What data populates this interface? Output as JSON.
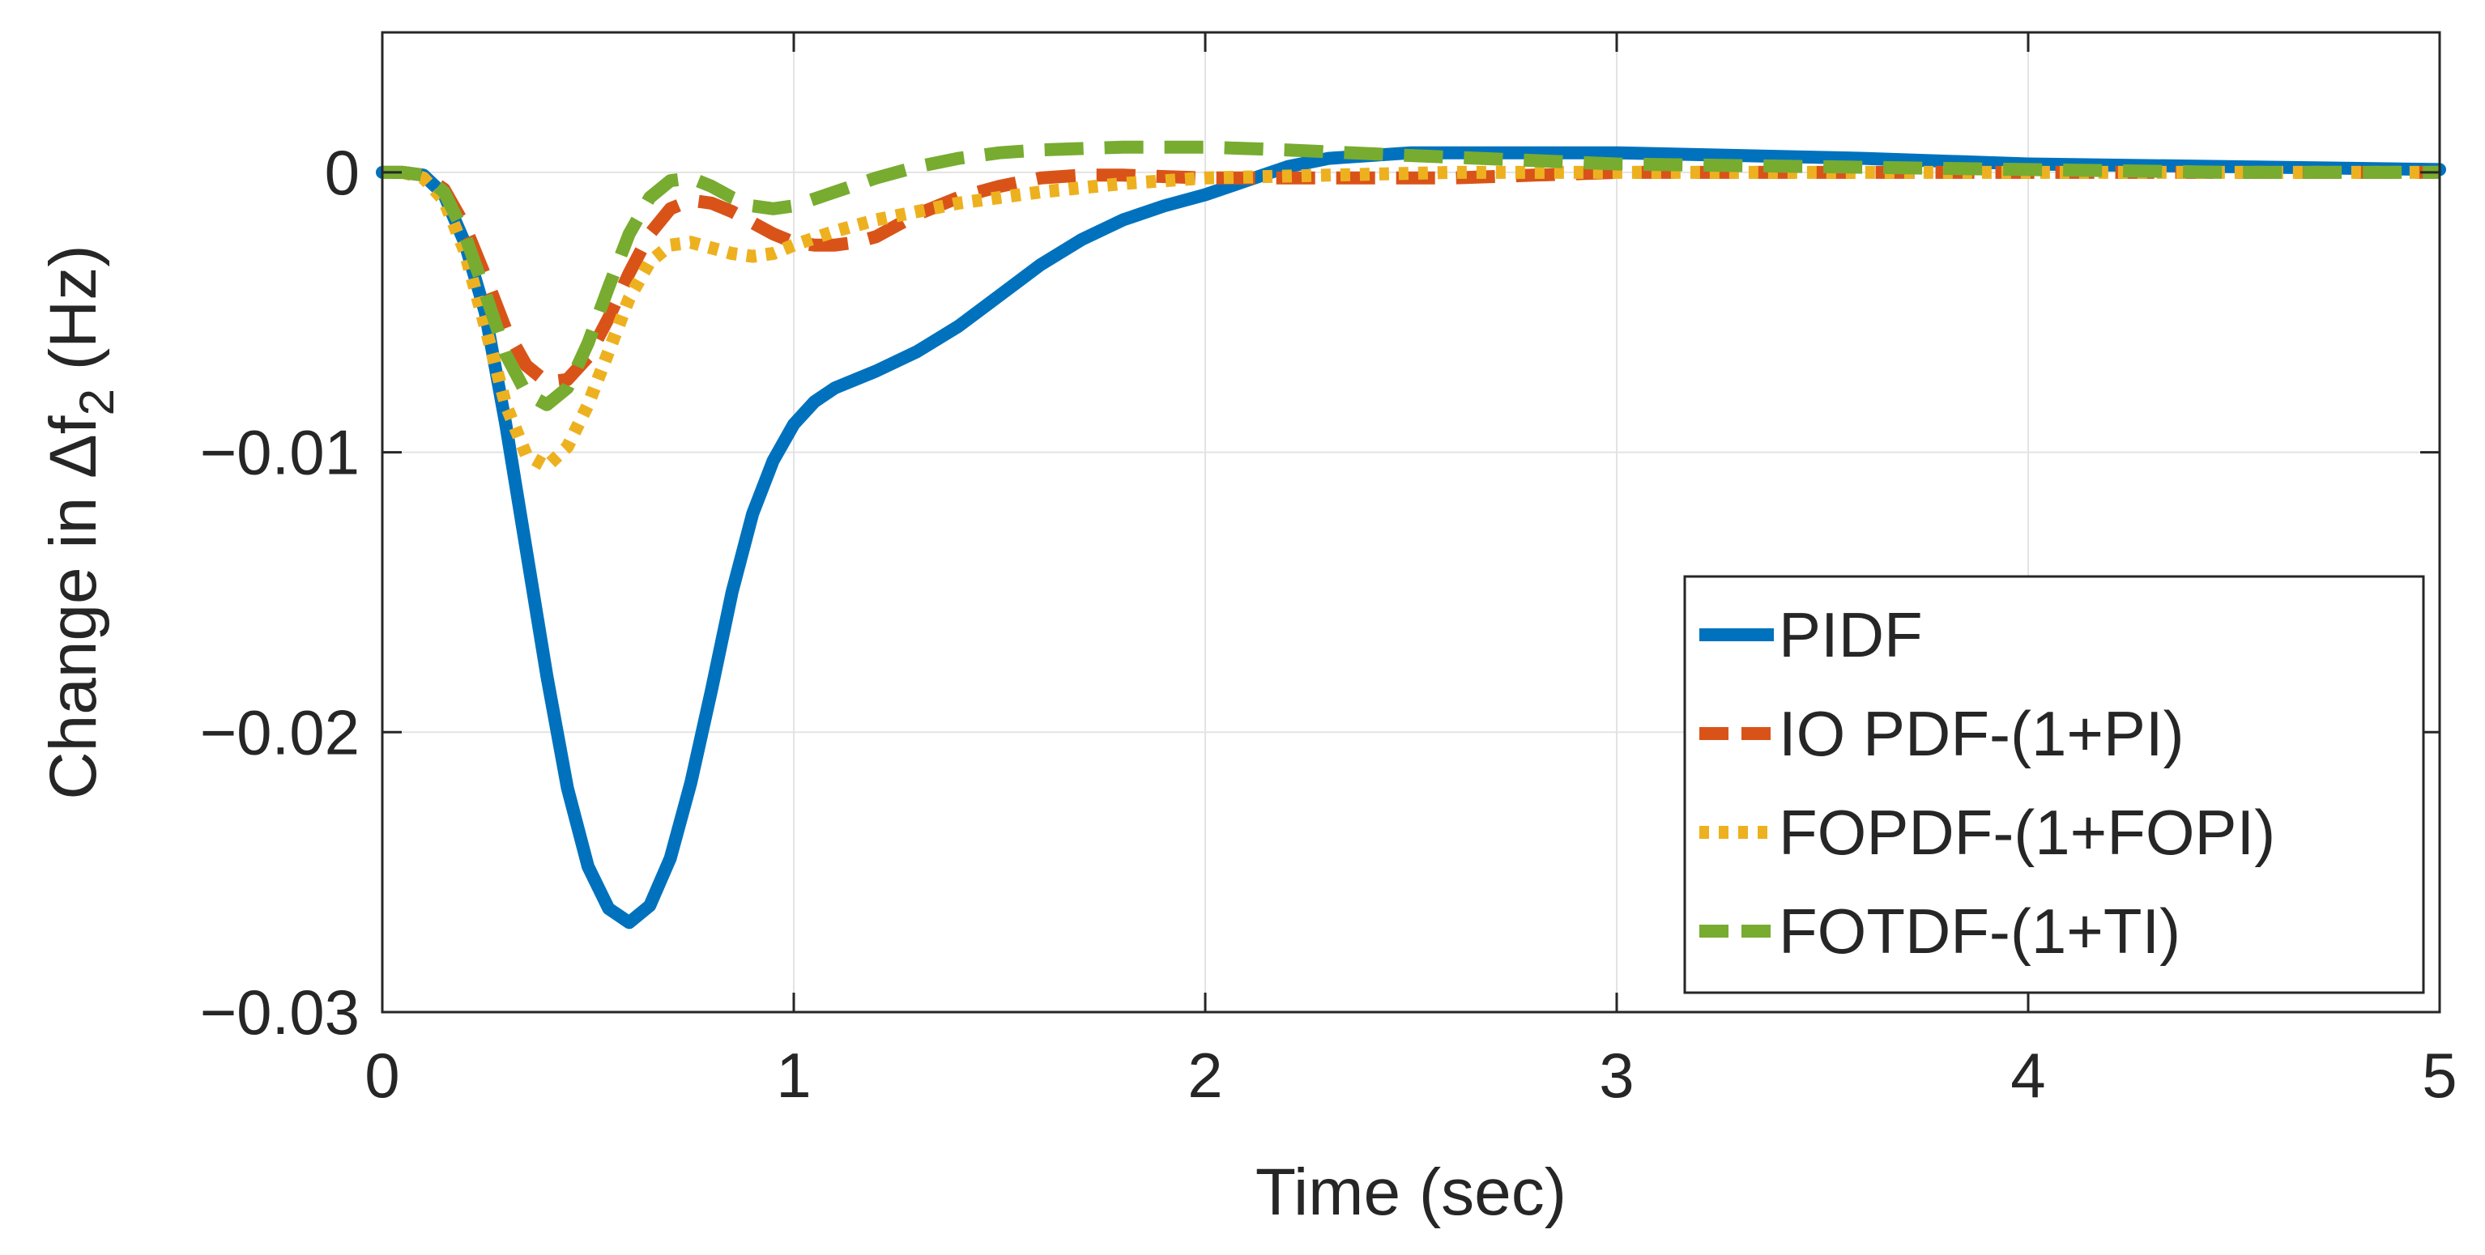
{
  "chart_data": {
    "type": "line",
    "title": "",
    "xlabel": "Time (sec)",
    "ylabel": {
      "prefix": "Change in Δf",
      "subscript": "2",
      "suffix": " (Hz)"
    },
    "xlim": [
      0,
      5
    ],
    "ylim": [
      -0.03,
      0.005
    ],
    "grid": true,
    "legend_position": "bottom-right",
    "x_ticks": [
      {
        "value": 0,
        "label": "0"
      },
      {
        "value": 1,
        "label": "1"
      },
      {
        "value": 2,
        "label": "2"
      },
      {
        "value": 3,
        "label": "3"
      },
      {
        "value": 4,
        "label": "4"
      },
      {
        "value": 5,
        "label": "5"
      }
    ],
    "y_ticks": [
      {
        "value": 0,
        "label": "0"
      },
      {
        "value": -0.01,
        "label": "−0.01"
      },
      {
        "value": -0.02,
        "label": "−0.02"
      },
      {
        "value": -0.03,
        "label": "−0.03"
      }
    ],
    "series": [
      {
        "name": "PIDF",
        "color": "#0072BD",
        "style": "solid",
        "points": [
          [
            0,
            0
          ],
          [
            0.05,
            0
          ],
          [
            0.1,
            -0.0001
          ],
          [
            0.15,
            -0.0008
          ],
          [
            0.2,
            -0.0025
          ],
          [
            0.25,
            -0.005
          ],
          [
            0.3,
            -0.009
          ],
          [
            0.35,
            -0.0135
          ],
          [
            0.4,
            -0.018
          ],
          [
            0.45,
            -0.022
          ],
          [
            0.5,
            -0.0248
          ],
          [
            0.55,
            -0.0263
          ],
          [
            0.6,
            -0.0268
          ],
          [
            0.65,
            -0.0262
          ],
          [
            0.7,
            -0.0245
          ],
          [
            0.75,
            -0.0218
          ],
          [
            0.8,
            -0.0185
          ],
          [
            0.85,
            -0.015
          ],
          [
            0.9,
            -0.0122
          ],
          [
            0.95,
            -0.0103
          ],
          [
            1.0,
            -0.009
          ],
          [
            1.05,
            -0.0082
          ],
          [
            1.1,
            -0.0077
          ],
          [
            1.2,
            -0.0071
          ],
          [
            1.3,
            -0.0064
          ],
          [
            1.4,
            -0.0055
          ],
          [
            1.5,
            -0.0044
          ],
          [
            1.6,
            -0.0033
          ],
          [
            1.7,
            -0.0024
          ],
          [
            1.8,
            -0.0017
          ],
          [
            1.9,
            -0.0012
          ],
          [
            2.0,
            -0.0008
          ],
          [
            2.1,
            -0.0003
          ],
          [
            2.2,
            0.0002
          ],
          [
            2.3,
            0.0005
          ],
          [
            2.5,
            0.0007
          ],
          [
            2.7,
            0.0007
          ],
          [
            3.0,
            0.0007
          ],
          [
            3.3,
            0.0006
          ],
          [
            3.6,
            0.0005
          ],
          [
            4.0,
            0.0003
          ],
          [
            4.5,
            0.0002
          ],
          [
            5.0,
            0.0001
          ]
        ]
      },
      {
        "name": "IO PDF-(1+PI)",
        "color": "#D95319",
        "style": "dashed",
        "points": [
          [
            0,
            0
          ],
          [
            0.05,
            0
          ],
          [
            0.1,
            -0.0001
          ],
          [
            0.15,
            -0.0006
          ],
          [
            0.2,
            -0.0019
          ],
          [
            0.25,
            -0.0037
          ],
          [
            0.3,
            -0.0056
          ],
          [
            0.35,
            -0.0069
          ],
          [
            0.4,
            -0.0075
          ],
          [
            0.45,
            -0.0074
          ],
          [
            0.5,
            -0.0066
          ],
          [
            0.55,
            -0.0052
          ],
          [
            0.6,
            -0.0036
          ],
          [
            0.65,
            -0.0022
          ],
          [
            0.7,
            -0.0013
          ],
          [
            0.75,
            -0.001
          ],
          [
            0.8,
            -0.0011
          ],
          [
            0.85,
            -0.0014
          ],
          [
            0.9,
            -0.0018
          ],
          [
            0.95,
            -0.0022
          ],
          [
            1.0,
            -0.0025
          ],
          [
            1.05,
            -0.0026
          ],
          [
            1.1,
            -0.0026
          ],
          [
            1.15,
            -0.0025
          ],
          [
            1.2,
            -0.0023
          ],
          [
            1.25,
            -0.0019
          ],
          [
            1.3,
            -0.0015
          ],
          [
            1.35,
            -0.0012
          ],
          [
            1.4,
            -0.0009
          ],
          [
            1.5,
            -0.0005
          ],
          [
            1.6,
            -0.0002
          ],
          [
            1.7,
            -0.0001
          ],
          [
            1.8,
            -0.0001
          ],
          [
            2.0,
            -0.0002
          ],
          [
            2.2,
            -0.0002
          ],
          [
            2.4,
            -0.0002
          ],
          [
            2.6,
            -0.0002
          ],
          [
            2.8,
            -0.0001
          ],
          [
            3.0,
            0
          ],
          [
            3.5,
            0
          ],
          [
            4.0,
            0
          ],
          [
            4.5,
            0
          ],
          [
            5.0,
            0
          ]
        ]
      },
      {
        "name": "FOPDF-(1+FOPI)",
        "color": "#EDB120",
        "style": "dotted",
        "points": [
          [
            0,
            0
          ],
          [
            0.05,
            0
          ],
          [
            0.1,
            -0.0002
          ],
          [
            0.15,
            -0.001
          ],
          [
            0.2,
            -0.0028
          ],
          [
            0.25,
            -0.0055
          ],
          [
            0.3,
            -0.0083
          ],
          [
            0.35,
            -0.0101
          ],
          [
            0.4,
            -0.0105
          ],
          [
            0.45,
            -0.0098
          ],
          [
            0.5,
            -0.0083
          ],
          [
            0.55,
            -0.0064
          ],
          [
            0.6,
            -0.0045
          ],
          [
            0.65,
            -0.0032
          ],
          [
            0.7,
            -0.0026
          ],
          [
            0.75,
            -0.0025
          ],
          [
            0.8,
            -0.0027
          ],
          [
            0.85,
            -0.0029
          ],
          [
            0.9,
            -0.003
          ],
          [
            0.95,
            -0.0029
          ],
          [
            1.0,
            -0.0026
          ],
          [
            1.1,
            -0.0021
          ],
          [
            1.2,
            -0.0017
          ],
          [
            1.3,
            -0.0014
          ],
          [
            1.4,
            -0.0011
          ],
          [
            1.5,
            -0.0009
          ],
          [
            1.6,
            -0.0007
          ],
          [
            1.8,
            -0.0004
          ],
          [
            2.0,
            -0.0002
          ],
          [
            2.3,
            -0.0001
          ],
          [
            2.6,
            0
          ],
          [
            3.0,
            0
          ],
          [
            4.0,
            0
          ],
          [
            5.0,
            0
          ]
        ]
      },
      {
        "name": "FOTDF-(1+TI)",
        "color": "#77AC30",
        "style": "dashed",
        "points": [
          [
            0,
            0
          ],
          [
            0.05,
            0
          ],
          [
            0.1,
            -0.0001
          ],
          [
            0.15,
            -0.0007
          ],
          [
            0.2,
            -0.0022
          ],
          [
            0.25,
            -0.0043
          ],
          [
            0.3,
            -0.0065
          ],
          [
            0.35,
            -0.0079
          ],
          [
            0.4,
            -0.0083
          ],
          [
            0.45,
            -0.0077
          ],
          [
            0.5,
            -0.0061
          ],
          [
            0.55,
            -0.0041
          ],
          [
            0.6,
            -0.0022
          ],
          [
            0.65,
            -0.0009
          ],
          [
            0.7,
            -0.0003
          ],
          [
            0.75,
            -0.0002
          ],
          [
            0.8,
            -0.0005
          ],
          [
            0.85,
            -0.0009
          ],
          [
            0.9,
            -0.0012
          ],
          [
            0.95,
            -0.0013
          ],
          [
            1.0,
            -0.0012
          ],
          [
            1.1,
            -0.0007
          ],
          [
            1.2,
            -0.0002
          ],
          [
            1.3,
            0.0002
          ],
          [
            1.4,
            0.0005
          ],
          [
            1.5,
            0.0007
          ],
          [
            1.6,
            0.0008
          ],
          [
            1.8,
            0.0009
          ],
          [
            2.0,
            0.0009
          ],
          [
            2.2,
            0.0008
          ],
          [
            2.5,
            0.0006
          ],
          [
            3.0,
            0.0003
          ],
          [
            3.5,
            0.0002
          ],
          [
            4.0,
            0.0001
          ],
          [
            4.5,
            0
          ],
          [
            5.0,
            0
          ]
        ]
      }
    ]
  }
}
